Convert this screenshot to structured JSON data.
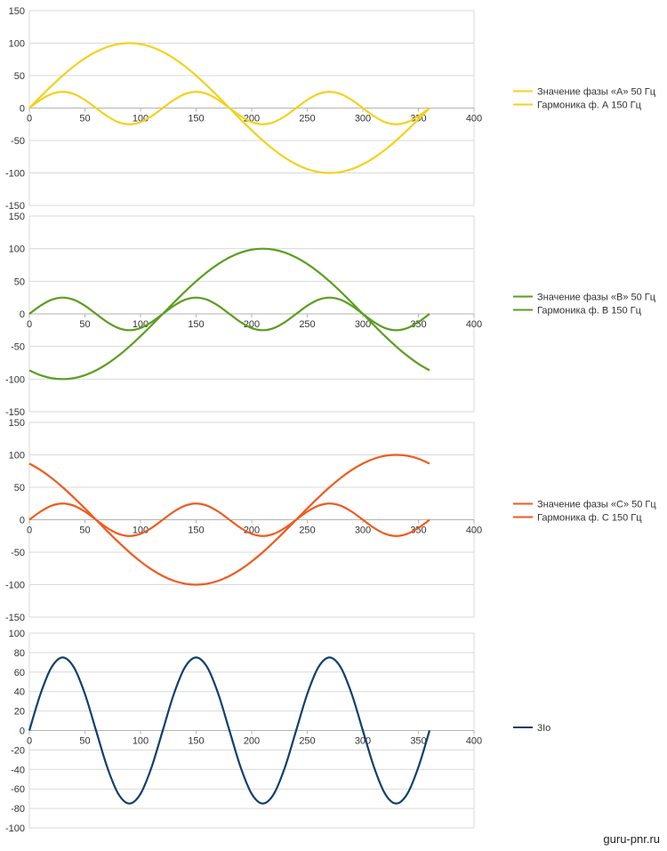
{
  "watermark": "guru-pnr.ru",
  "chart_data": [
    {
      "type": "line",
      "x": [
        0,
        10,
        20,
        30,
        40,
        50,
        60,
        70,
        80,
        90,
        100,
        110,
        120,
        130,
        140,
        150,
        160,
        170,
        180,
        190,
        200,
        210,
        220,
        230,
        240,
        250,
        260,
        270,
        280,
        290,
        300,
        310,
        320,
        330,
        340,
        350,
        360
      ],
      "xlim": [
        0,
        400
      ],
      "ylim": [
        -150,
        150
      ],
      "xticks": [
        0,
        50,
        100,
        150,
        200,
        250,
        300,
        350,
        400
      ],
      "yticks": [
        150,
        100,
        50,
        0,
        -50,
        -100,
        -150
      ],
      "grid": true,
      "legend_position": "right",
      "series": [
        {
          "name": "Значение фазы «А» 50 Гц",
          "color": "#f5d11c",
          "values": [
            0,
            17.4,
            34.2,
            50,
            64.3,
            76.6,
            86.6,
            94,
            98.5,
            100,
            98.5,
            94,
            86.6,
            76.6,
            64.3,
            50,
            34.2,
            17.4,
            0,
            -17.4,
            -34.2,
            -50,
            -64.3,
            -76.6,
            -86.6,
            -94,
            -98.5,
            -100,
            -98.5,
            -94,
            -86.6,
            -76.6,
            -64.3,
            -50,
            -34.2,
            -17.4,
            0
          ]
        },
        {
          "name": "Гармоника ф. А 150 Гц",
          "color": "#f5d11c",
          "values": [
            0,
            12.5,
            21.7,
            25,
            21.7,
            12.5,
            0,
            -12.5,
            -21.7,
            -25,
            -21.7,
            -12.5,
            0,
            12.5,
            21.7,
            25,
            21.7,
            12.5,
            0,
            -12.5,
            -21.7,
            -25,
            -21.7,
            -12.5,
            0,
            12.5,
            21.7,
            25,
            21.7,
            12.5,
            0,
            -12.5,
            -21.7,
            -25,
            -21.7,
            -12.5,
            0
          ]
        }
      ]
    },
    {
      "type": "line",
      "x": [
        0,
        10,
        20,
        30,
        40,
        50,
        60,
        70,
        80,
        90,
        100,
        110,
        120,
        130,
        140,
        150,
        160,
        170,
        180,
        190,
        200,
        210,
        220,
        230,
        240,
        250,
        260,
        270,
        280,
        290,
        300,
        310,
        320,
        330,
        340,
        350,
        360
      ],
      "xlim": [
        0,
        400
      ],
      "ylim": [
        -150,
        150
      ],
      "xticks": [
        0,
        50,
        100,
        150,
        200,
        250,
        300,
        350,
        400
      ],
      "yticks": [
        150,
        100,
        50,
        0,
        -50,
        -100,
        -150
      ],
      "grid": true,
      "legend_position": "right",
      "series": [
        {
          "name": "Значение фазы «В» 50 Гц",
          "color": "#5b9e1f",
          "values": [
            -86.6,
            -94,
            -98.5,
            -100,
            -98.5,
            -94,
            -86.6,
            -76.6,
            -64.3,
            -50,
            -34.2,
            -17.4,
            0,
            17.4,
            34.2,
            50,
            64.3,
            76.6,
            86.6,
            94,
            98.5,
            100,
            98.5,
            94,
            86.6,
            76.6,
            64.3,
            50,
            34.2,
            17.4,
            0,
            -17.4,
            -34.2,
            -50,
            -64.3,
            -76.6,
            -86.6
          ]
        },
        {
          "name": "Гармоника ф. В 150 Гц",
          "color": "#5b9e1f",
          "values": [
            0,
            12.5,
            21.7,
            25,
            21.7,
            12.5,
            0,
            -12.5,
            -21.7,
            -25,
            -21.7,
            -12.5,
            0,
            12.5,
            21.7,
            25,
            21.7,
            12.5,
            0,
            -12.5,
            -21.7,
            -25,
            -21.7,
            -12.5,
            0,
            12.5,
            21.7,
            25,
            21.7,
            12.5,
            0,
            -12.5,
            -21.7,
            -25,
            -21.7,
            -12.5,
            0
          ]
        }
      ]
    },
    {
      "type": "line",
      "x": [
        0,
        10,
        20,
        30,
        40,
        50,
        60,
        70,
        80,
        90,
        100,
        110,
        120,
        130,
        140,
        150,
        160,
        170,
        180,
        190,
        200,
        210,
        220,
        230,
        240,
        250,
        260,
        270,
        280,
        290,
        300,
        310,
        320,
        330,
        340,
        350,
        360
      ],
      "xlim": [
        0,
        400
      ],
      "ylim": [
        -150,
        150
      ],
      "xticks": [
        0,
        50,
        100,
        150,
        200,
        250,
        300,
        350,
        400
      ],
      "yticks": [
        150,
        100,
        50,
        0,
        -50,
        -100,
        -150
      ],
      "grid": true,
      "legend_position": "right",
      "series": [
        {
          "name": "Значение фазы «С» 50 Гц",
          "color": "#f05a1e",
          "values": [
            86.6,
            76.6,
            64.3,
            50,
            34.2,
            17.4,
            0,
            -17.4,
            -34.2,
            -50,
            -64.3,
            -76.6,
            -86.6,
            -94,
            -98.5,
            -100,
            -98.5,
            -94,
            -86.6,
            -76.6,
            -64.3,
            -50,
            -34.2,
            -17.4,
            0,
            17.4,
            34.2,
            50,
            64.3,
            76.6,
            86.6,
            94,
            98.5,
            100,
            98.5,
            94,
            86.6
          ]
        },
        {
          "name": "Гармоника ф. С 150 Гц",
          "color": "#f05a1e",
          "values": [
            0,
            12.5,
            21.7,
            25,
            21.7,
            12.5,
            0,
            -12.5,
            -21.7,
            -25,
            -21.7,
            -12.5,
            0,
            12.5,
            21.7,
            25,
            21.7,
            12.5,
            0,
            -12.5,
            -21.7,
            -25,
            -21.7,
            -12.5,
            0,
            12.5,
            21.7,
            25,
            21.7,
            12.5,
            0,
            -12.5,
            -21.7,
            -25,
            -21.7,
            -12.5,
            0
          ]
        }
      ]
    },
    {
      "type": "line",
      "x": [
        0,
        10,
        20,
        30,
        40,
        50,
        60,
        70,
        80,
        90,
        100,
        110,
        120,
        130,
        140,
        150,
        160,
        170,
        180,
        190,
        200,
        210,
        220,
        230,
        240,
        250,
        260,
        270,
        280,
        290,
        300,
        310,
        320,
        330,
        340,
        350,
        360
      ],
      "xlim": [
        0,
        400
      ],
      "ylim": [
        -100,
        100
      ],
      "xticks": [
        0,
        50,
        100,
        150,
        200,
        250,
        300,
        350,
        400
      ],
      "yticks": [
        100,
        80,
        60,
        40,
        20,
        0,
        -20,
        -40,
        -60,
        -80,
        -100
      ],
      "grid": true,
      "legend_position": "right",
      "series": [
        {
          "name": "3Io",
          "color": "#0f3f6e",
          "values": [
            0,
            37.5,
            65,
            75,
            65,
            37.5,
            0,
            -37.5,
            -65,
            -75,
            -65,
            -37.5,
            0,
            37.5,
            65,
            75,
            65,
            37.5,
            0,
            -37.5,
            -65,
            -75,
            -65,
            -37.5,
            0,
            37.5,
            65,
            75,
            65,
            37.5,
            0,
            -37.5,
            -65,
            -75,
            -65,
            -37.5,
            0
          ]
        }
      ]
    }
  ]
}
